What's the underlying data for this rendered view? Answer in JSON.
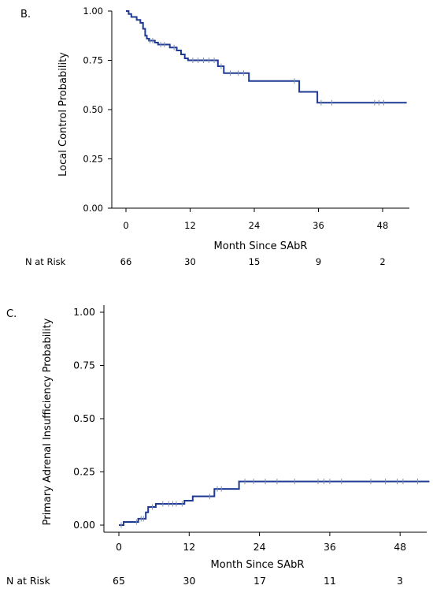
{
  "chart_data": [
    {
      "type": "line",
      "panel_label": "B.",
      "xlabel": "Month Since SAbR",
      "ylabel": "Local Control Probability",
      "xlim": [
        0,
        53
      ],
      "ylim": [
        0,
        1
      ],
      "xticks": [
        "0",
        "12",
        "24",
        "36",
        "48"
      ],
      "yticks": [
        "0.00",
        "0.25",
        "0.50",
        "0.75",
        "1.00"
      ],
      "grid": false,
      "series": [
        {
          "color": "#1f3a93",
          "step": [
            [
              0,
              1.0
            ],
            [
              0.5,
              0.985
            ],
            [
              1.0,
              0.97
            ],
            [
              2.0,
              0.955
            ],
            [
              2.7,
              0.94
            ],
            [
              3.2,
              0.91
            ],
            [
              3.6,
              0.875
            ],
            [
              3.9,
              0.86
            ],
            [
              4.3,
              0.85
            ],
            [
              5.4,
              0.84
            ],
            [
              6.0,
              0.83
            ],
            [
              8.2,
              0.815
            ],
            [
              9.5,
              0.8
            ],
            [
              10.3,
              0.78
            ],
            [
              11.0,
              0.76
            ],
            [
              11.6,
              0.75
            ],
            [
              17.2,
              0.72
            ],
            [
              18.3,
              0.685
            ],
            [
              23.0,
              0.645
            ],
            [
              32.4,
              0.59
            ],
            [
              35.8,
              0.535
            ],
            [
              52.5,
              0.535
            ]
          ],
          "censored": [
            4.5,
            5.0,
            6.5,
            7.2,
            9.0,
            12.5,
            13.5,
            14.5,
            15.5,
            16.5,
            17.8,
            19.5,
            21.0,
            22.0,
            31.5,
            36.5,
            38.5,
            46.5,
            47.3,
            48.2
          ]
        }
      ],
      "risk_table": {
        "label": "N at Risk",
        "values": [
          "66",
          "30",
          "15",
          "9",
          "2"
        ],
        "at_x": [
          0,
          12,
          24,
          36,
          48
        ]
      }
    },
    {
      "type": "line",
      "panel_label": "C.",
      "xlabel": "Month Since SAbR",
      "ylabel": "Primary Adrenal Insufficiency Probability",
      "xlim": [
        0,
        53
      ],
      "ylim": [
        0,
        1
      ],
      "xticks": [
        "0",
        "12",
        "24",
        "36",
        "48"
      ],
      "yticks": [
        "0.00",
        "0.25",
        "0.50",
        "0.75",
        "1.00"
      ],
      "grid": false,
      "series": [
        {
          "color": "#1f3a93",
          "step": [
            [
              0,
              0.0
            ],
            [
              0.8,
              0.015
            ],
            [
              3.3,
              0.03
            ],
            [
              4.6,
              0.06
            ],
            [
              5.0,
              0.085
            ],
            [
              6.3,
              0.1
            ],
            [
              11.2,
              0.115
            ],
            [
              12.6,
              0.135
            ],
            [
              16.3,
              0.17
            ],
            [
              20.5,
              0.205
            ],
            [
              53,
              0.205
            ]
          ],
          "censored": [
            0.4,
            3.0,
            3.8,
            4.2,
            5.7,
            7.5,
            8.5,
            9.2,
            9.8,
            10.8,
            15.5,
            16.8,
            17.5,
            21.5,
            23.0,
            25.0,
            27.0,
            30.0,
            34.0,
            35.0,
            36.0,
            38.0,
            43.0,
            45.5,
            47.5,
            48.5,
            51.0
          ]
        }
      ],
      "risk_table": {
        "label": "N at Risk",
        "values": [
          "65",
          "30",
          "17",
          "11",
          "3"
        ],
        "at_x": [
          0,
          12,
          24,
          36,
          48
        ]
      }
    }
  ]
}
